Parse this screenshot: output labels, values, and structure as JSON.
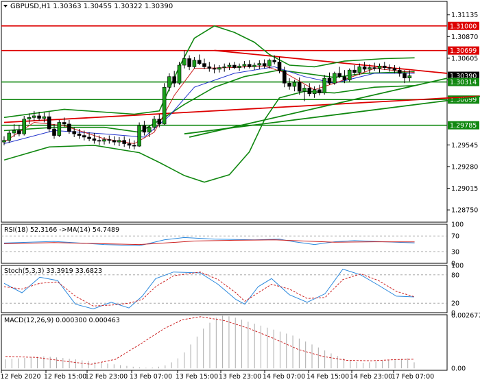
{
  "chart_data": {
    "type": "candlestick",
    "symbol_line": "GBPUSD,H1  1.30363 1.30455 1.30322 1.30390",
    "price_axis": {
      "ylim": [
        1.286,
        1.313
      ],
      "ticks": [
        1.31135,
        1.3087,
        1.30605,
        1.3034,
        1.29545,
        1.2928,
        1.29015,
        1.2875
      ],
      "tick_labels": [
        "1.31135",
        "1.30870",
        "1.30605",
        "1.30340",
        "1.29545",
        "1.29280",
        "1.29015",
        "1.28750"
      ]
    },
    "x_tick_labels": [
      "12 Feb 2020",
      "12 Feb 15:00",
      "12 Feb 23:00",
      "13 Feb 07:00",
      "13 Feb 15:00",
      "13 Feb 23:00",
      "14 Feb 07:00",
      "14 Feb 15:00",
      "14 Feb 23:00",
      "17 Feb 07:00"
    ],
    "levels": [
      {
        "label": "1.31000",
        "value": 1.31,
        "color": "#dd0000"
      },
      {
        "label": "1.30699",
        "value": 1.30699,
        "color": "#dd0000"
      },
      {
        "label": "1.30390",
        "value": 1.3039,
        "color": "#000000"
      },
      {
        "label": "1.30314",
        "value": 1.30314,
        "color": "#118811"
      },
      {
        "label": "1.30099",
        "value": 1.30099,
        "color": "#118811"
      },
      {
        "label": "1.29785",
        "value": 1.29785,
        "color": "#118811"
      }
    ],
    "trendlines": [
      {
        "color": "#dd0000",
        "from": [
          42,
          1.307
        ],
        "to": [
          100,
          1.3042
        ]
      },
      {
        "color": "#dd0000",
        "from": [
          0,
          1.2982
        ],
        "to": [
          98,
          1.3015
        ]
      },
      {
        "color": "#118811",
        "from": [
          37,
          1.2964
        ],
        "to": [
          100,
          1.3036
        ]
      },
      {
        "color": "#118811",
        "from": [
          36,
          1.2968
        ],
        "to": [
          98,
          1.3016
        ]
      }
    ],
    "candles": [
      [
        1.2958,
        1.2965,
        1.2954,
        1.296
      ],
      [
        1.296,
        1.2972,
        1.2957,
        1.2969
      ],
      [
        1.2969,
        1.298,
        1.2964,
        1.2972
      ],
      [
        1.2972,
        1.2979,
        1.2965,
        1.2968
      ],
      [
        1.2968,
        1.299,
        1.2966,
        1.2986
      ],
      [
        1.2986,
        1.2993,
        1.298,
        1.2988
      ],
      [
        1.2988,
        1.2996,
        1.2984,
        1.299
      ],
      [
        1.299,
        1.2995,
        1.2984,
        1.2987
      ],
      [
        1.2987,
        1.2994,
        1.2982,
        1.2989
      ],
      [
        1.2989,
        1.2995,
        1.297,
        1.2974
      ],
      [
        1.2974,
        1.298,
        1.2962,
        1.2966
      ],
      [
        1.2966,
        1.2985,
        1.2964,
        1.2982
      ],
      [
        1.2982,
        1.2988,
        1.2976,
        1.298
      ],
      [
        1.298,
        1.2985,
        1.2968,
        1.2971
      ],
      [
        1.2971,
        1.2976,
        1.2964,
        1.2968
      ],
      [
        1.2968,
        1.2974,
        1.2962,
        1.2966
      ],
      [
        1.2966,
        1.2972,
        1.296,
        1.2964
      ],
      [
        1.2964,
        1.297,
        1.2959,
        1.2962
      ],
      [
        1.2962,
        1.2969,
        1.2956,
        1.296
      ],
      [
        1.296,
        1.2966,
        1.2954,
        1.2959
      ],
      [
        1.2959,
        1.2964,
        1.2955,
        1.2961
      ],
      [
        1.2961,
        1.2966,
        1.2956,
        1.296
      ],
      [
        1.296,
        1.2965,
        1.2954,
        1.2958
      ],
      [
        1.2958,
        1.2964,
        1.2953,
        1.296
      ],
      [
        1.296,
        1.2965,
        1.2952,
        1.2956
      ],
      [
        1.2956,
        1.2962,
        1.295,
        1.2954
      ],
      [
        1.2954,
        1.296,
        1.2949,
        1.2953
      ],
      [
        1.2953,
        1.2982,
        1.2952,
        1.2978
      ],
      [
        1.2978,
        1.2984,
        1.2966,
        1.297
      ],
      [
        1.297,
        1.2978,
        1.2964,
        1.2976
      ],
      [
        1.2976,
        1.299,
        1.2972,
        1.2986
      ],
      [
        1.2986,
        1.2992,
        1.2976,
        1.298
      ],
      [
        1.298,
        1.303,
        1.2979,
        1.3025
      ],
      [
        1.3025,
        1.3042,
        1.302,
        1.3038
      ],
      [
        1.3038,
        1.3045,
        1.3025,
        1.303
      ],
      [
        1.303,
        1.3056,
        1.3028,
        1.3052
      ],
      [
        1.3052,
        1.307,
        1.3048,
        1.306
      ],
      [
        1.306,
        1.3064,
        1.3046,
        1.305
      ],
      [
        1.305,
        1.3062,
        1.3048,
        1.3058
      ],
      [
        1.3058,
        1.3065,
        1.3052,
        1.3054
      ],
      [
        1.3054,
        1.306,
        1.3047,
        1.305
      ],
      [
        1.305,
        1.3056,
        1.3044,
        1.3048
      ],
      [
        1.3048,
        1.3053,
        1.3042,
        1.3047
      ],
      [
        1.3047,
        1.3052,
        1.3043,
        1.3049
      ],
      [
        1.3049,
        1.3054,
        1.3044,
        1.305
      ],
      [
        1.305,
        1.3055,
        1.3046,
        1.3052
      ],
      [
        1.3052,
        1.3056,
        1.3047,
        1.3049
      ],
      [
        1.3049,
        1.3054,
        1.3045,
        1.3051
      ],
      [
        1.3051,
        1.3057,
        1.3048,
        1.3053
      ],
      [
        1.3053,
        1.3058,
        1.3048,
        1.305
      ],
      [
        1.305,
        1.3055,
        1.3046,
        1.3052
      ],
      [
        1.3052,
        1.3058,
        1.3047,
        1.3054
      ],
      [
        1.3054,
        1.3059,
        1.3048,
        1.3051
      ],
      [
        1.3051,
        1.306,
        1.3048,
        1.3058
      ],
      [
        1.3058,
        1.3064,
        1.3053,
        1.3056
      ],
      [
        1.3056,
        1.3062,
        1.3042,
        1.3045
      ],
      [
        1.3045,
        1.305,
        1.3025,
        1.303
      ],
      [
        1.303,
        1.3036,
        1.3022,
        1.3026
      ],
      [
        1.3026,
        1.3034,
        1.302,
        1.3031
      ],
      [
        1.3031,
        1.3037,
        1.3016,
        1.302
      ],
      [
        1.302,
        1.3028,
        1.3008,
        1.3024
      ],
      [
        1.3024,
        1.303,
        1.3014,
        1.3017
      ],
      [
        1.3017,
        1.3026,
        1.3012,
        1.3022
      ],
      [
        1.3022,
        1.3028,
        1.3015,
        1.3018
      ],
      [
        1.3018,
        1.304,
        1.3016,
        1.3036
      ],
      [
        1.3036,
        1.3043,
        1.3028,
        1.303
      ],
      [
        1.303,
        1.3044,
        1.3028,
        1.3042
      ],
      [
        1.3042,
        1.305,
        1.3036,
        1.3038
      ],
      [
        1.3038,
        1.3046,
        1.303,
        1.3034
      ],
      [
        1.3034,
        1.3048,
        1.3032,
        1.3046
      ],
      [
        1.3046,
        1.3052,
        1.304,
        1.3043
      ],
      [
        1.3043,
        1.3054,
        1.304,
        1.305
      ],
      [
        1.305,
        1.3056,
        1.3044,
        1.3047
      ],
      [
        1.3047,
        1.3053,
        1.3042,
        1.3049
      ],
      [
        1.3049,
        1.3055,
        1.3045,
        1.3048
      ],
      [
        1.3048,
        1.3054,
        1.3043,
        1.3051
      ],
      [
        1.3051,
        1.3056,
        1.3046,
        1.3049
      ],
      [
        1.3049,
        1.3053,
        1.3044,
        1.3048
      ],
      [
        1.3048,
        1.3052,
        1.3042,
        1.3046
      ],
      [
        1.3046,
        1.305,
        1.3038,
        1.3042
      ],
      [
        1.3042,
        1.3046,
        1.303,
        1.30363
      ],
      [
        1.30363,
        1.30455,
        1.30322,
        1.3039
      ]
    ],
    "bollinger": {
      "upper": [
        [
          0,
          1.2988
        ],
        [
          12,
          1.2998
        ],
        [
          26,
          1.2992
        ],
        [
          31,
          1.2996
        ],
        [
          35,
          1.305
        ],
        [
          38,
          1.3085
        ],
        [
          42,
          1.31
        ],
        [
          46,
          1.3092
        ],
        [
          50,
          1.308
        ],
        [
          53,
          1.3065
        ],
        [
          57,
          1.3052
        ],
        [
          62,
          1.305
        ],
        [
          68,
          1.3057
        ],
        [
          76,
          1.306
        ],
        [
          82,
          1.3061
        ]
      ],
      "middle": [
        [
          0,
          1.2972
        ],
        [
          10,
          1.2976
        ],
        [
          20,
          1.2976
        ],
        [
          27,
          1.297
        ],
        [
          32,
          1.2988
        ],
        [
          36,
          1.3004
        ],
        [
          42,
          1.3025
        ],
        [
          48,
          1.3038
        ],
        [
          55,
          1.3046
        ],
        [
          60,
          1.3042
        ],
        [
          66,
          1.3037
        ],
        [
          72,
          1.3042
        ],
        [
          82,
          1.3044
        ]
      ],
      "lower": [
        [
          0,
          1.2936
        ],
        [
          9,
          1.2952
        ],
        [
          18,
          1.2954
        ],
        [
          27,
          1.2945
        ],
        [
          31,
          1.2933
        ],
        [
          36,
          1.2917
        ],
        [
          40,
          1.2909
        ],
        [
          45,
          1.2918
        ],
        [
          49,
          1.2946
        ],
        [
          52,
          1.2985
        ],
        [
          55,
          1.3012
        ],
        [
          60,
          1.302
        ],
        [
          66,
          1.3018
        ],
        [
          74,
          1.3025
        ],
        [
          82,
          1.3027
        ]
      ]
    },
    "ma_fast": [
      [
        0,
        1.2958
      ],
      [
        6,
        1.2982
      ],
      [
        12,
        1.2978
      ],
      [
        20,
        1.2962
      ],
      [
        26,
        1.2956
      ],
      [
        30,
        1.297
      ],
      [
        34,
        1.3015
      ],
      [
        38,
        1.3048
      ],
      [
        45,
        1.3049
      ],
      [
        52,
        1.3051
      ],
      [
        56,
        1.3043
      ],
      [
        62,
        1.3022
      ],
      [
        67,
        1.3032
      ],
      [
        74,
        1.3048
      ],
      [
        82,
        1.3043
      ]
    ],
    "ma_slow": [
      [
        0,
        1.2956
      ],
      [
        10,
        1.2972
      ],
      [
        20,
        1.2968
      ],
      [
        28,
        1.2964
      ],
      [
        33,
        1.299
      ],
      [
        38,
        1.3025
      ],
      [
        46,
        1.3042
      ],
      [
        54,
        1.305
      ],
      [
        60,
        1.3038
      ],
      [
        66,
        1.303
      ],
      [
        74,
        1.3042
      ],
      [
        82,
        1.3042
      ]
    ],
    "rsi": {
      "label": "RSI(18) 52.3166  ->MA(14) 54.7489",
      "ylim": [
        0,
        100
      ],
      "levels": [
        70,
        30
      ],
      "ticks": [
        100,
        70,
        30,
        0
      ],
      "tick_labels": [
        "100",
        "70",
        "30",
        "0"
      ],
      "line": [
        [
          0,
          52
        ],
        [
          10,
          56
        ],
        [
          20,
          48
        ],
        [
          27,
          45
        ],
        [
          32,
          60
        ],
        [
          36,
          66
        ],
        [
          42,
          62
        ],
        [
          50,
          60
        ],
        [
          55,
          62
        ],
        [
          58,
          55
        ],
        [
          62,
          48
        ],
        [
          66,
          55
        ],
        [
          70,
          58
        ],
        [
          76,
          55
        ],
        [
          82,
          52.3
        ]
      ],
      "ma": [
        [
          0,
          50
        ],
        [
          10,
          53
        ],
        [
          20,
          50
        ],
        [
          27,
          48
        ],
        [
          32,
          52
        ],
        [
          38,
          57
        ],
        [
          46,
          59
        ],
        [
          54,
          60
        ],
        [
          60,
          57
        ],
        [
          66,
          54
        ],
        [
          74,
          55
        ],
        [
          82,
          54.7
        ]
      ]
    },
    "stoch": {
      "label": "Stoch(5,3,3) 33.3919 33.6823",
      "ylim": [
        0,
        100
      ],
      "levels": [
        80,
        20
      ],
      "ticks": [
        100,
        80,
        20,
        0
      ],
      "tick_labels": [
        "100",
        "80",
        "20",
        "0"
      ],
      "k": [
        [
          0,
          62
        ],
        [
          4,
          42
        ],
        [
          8,
          75
        ],
        [
          12,
          68
        ],
        [
          16,
          18
        ],
        [
          20,
          8
        ],
        [
          24,
          22
        ],
        [
          28,
          10
        ],
        [
          31,
          35
        ],
        [
          34,
          72
        ],
        [
          38,
          86
        ],
        [
          44,
          84
        ],
        [
          48,
          60
        ],
        [
          52,
          28
        ],
        [
          54,
          18
        ],
        [
          57,
          55
        ],
        [
          60,
          72
        ],
        [
          64,
          38
        ],
        [
          68,
          22
        ],
        [
          72,
          40
        ],
        [
          76,
          92
        ],
        [
          80,
          80
        ],
        [
          84,
          58
        ],
        [
          88,
          35
        ],
        [
          92,
          33.4
        ]
      ],
      "d": [
        [
          0,
          55
        ],
        [
          4,
          50
        ],
        [
          8,
          62
        ],
        [
          12,
          65
        ],
        [
          16,
          35
        ],
        [
          20,
          14
        ],
        [
          24,
          16
        ],
        [
          28,
          20
        ],
        [
          31,
          28
        ],
        [
          34,
          55
        ],
        [
          38,
          78
        ],
        [
          44,
          86
        ],
        [
          48,
          70
        ],
        [
          52,
          42
        ],
        [
          54,
          24
        ],
        [
          57,
          42
        ],
        [
          60,
          60
        ],
        [
          64,
          50
        ],
        [
          68,
          30
        ],
        [
          72,
          32
        ],
        [
          76,
          70
        ],
        [
          80,
          82
        ],
        [
          84,
          68
        ],
        [
          88,
          45
        ],
        [
          92,
          33.7
        ]
      ]
    },
    "macd": {
      "label": "MACD(12,26,9) 0.000300 0.000463",
      "ylim": [
        -0.0001,
        0.0027
      ],
      "ticks": [
        0.002677,
        0.0
      ],
      "tick_labels": [
        "0.002677",
        "0.00"
      ],
      "histogram": [
        0.00045,
        0.00048,
        0.0005,
        0.00052,
        0.00055,
        0.00058,
        0.0006,
        0.00058,
        0.00055,
        0.00052,
        0.00048,
        0.00045,
        0.0004,
        0.00036,
        0.00032,
        0.00028,
        0.00024,
        0.0002,
        0.00016,
        0.00012,
        8e-05,
        5e-05,
        3e-05,
        4e-05,
        8e-05,
        0.00015,
        0.0003,
        0.0005,
        0.0008,
        0.0012,
        0.0016,
        0.002,
        0.0023,
        0.00255,
        0.00265,
        0.00262,
        0.00255,
        0.00245,
        0.00235,
        0.00225,
        0.00215,
        0.00205,
        0.00195,
        0.00185,
        0.00175,
        0.00165,
        0.0015,
        0.00135,
        0.0012,
        0.00105,
        0.0009,
        0.00075,
        0.00062,
        0.0005,
        0.0004,
        0.00032,
        0.00028,
        0.0003,
        0.00034,
        0.00038,
        0.00042,
        0.00045,
        0.00048,
        0.0005,
        0.0003
      ],
      "signal": [
        [
          0,
          0.0006
        ],
        [
          10,
          0.00055
        ],
        [
          20,
          0.00035
        ],
        [
          28,
          0.0002
        ],
        [
          36,
          0.00045
        ],
        [
          44,
          0.0012
        ],
        [
          52,
          0.002
        ],
        [
          58,
          0.00245
        ],
        [
          64,
          0.0026
        ],
        [
          72,
          0.0024
        ],
        [
          80,
          0.002
        ],
        [
          88,
          0.0015
        ],
        [
          96,
          0.00095
        ],
        [
          104,
          0.0006
        ],
        [
          112,
          0.0004
        ],
        [
          120,
          0.00038
        ],
        [
          128,
          0.00044
        ],
        [
          134,
          0.00046
        ]
      ]
    }
  }
}
